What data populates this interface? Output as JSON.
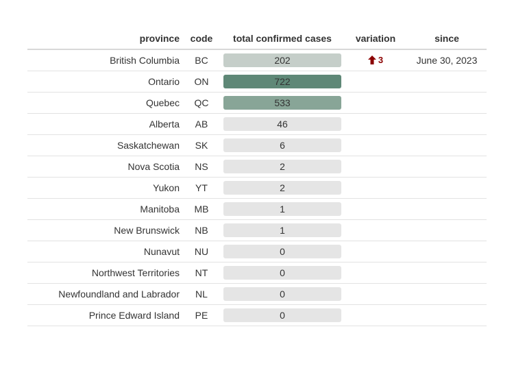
{
  "headers": {
    "province": "province",
    "code": "code",
    "cases": "total confirmed cases",
    "variation": "variation",
    "since": "since"
  },
  "colors": {
    "variation_up": "#8b0000"
  },
  "rows": [
    {
      "province": "British Columbia",
      "code": "BC",
      "cases": "202",
      "bar_color": "#c5cec9",
      "variation": "3",
      "variation_direction": "up",
      "since": "June 30, 2023"
    },
    {
      "province": "Ontario",
      "code": "ON",
      "cases": "722",
      "bar_color": "#5f8877",
      "variation": "",
      "since": ""
    },
    {
      "province": "Quebec",
      "code": "QC",
      "cases": "533",
      "bar_color": "#88a597",
      "variation": "",
      "since": ""
    },
    {
      "province": "Alberta",
      "code": "AB",
      "cases": "46",
      "bar_color": "#e5e5e5",
      "variation": "",
      "since": ""
    },
    {
      "province": "Saskatchewan",
      "code": "SK",
      "cases": "6",
      "bar_color": "#e5e5e5",
      "variation": "",
      "since": ""
    },
    {
      "province": "Nova Scotia",
      "code": "NS",
      "cases": "2",
      "bar_color": "#e5e5e5",
      "variation": "",
      "since": ""
    },
    {
      "province": "Yukon",
      "code": "YT",
      "cases": "2",
      "bar_color": "#e5e5e5",
      "variation": "",
      "since": ""
    },
    {
      "province": "Manitoba",
      "code": "MB",
      "cases": "1",
      "bar_color": "#e5e5e5",
      "variation": "",
      "since": ""
    },
    {
      "province": "New Brunswick",
      "code": "NB",
      "cases": "1",
      "bar_color": "#e5e5e5",
      "variation": "",
      "since": ""
    },
    {
      "province": "Nunavut",
      "code": "NU",
      "cases": "0",
      "bar_color": "#e5e5e5",
      "variation": "",
      "since": ""
    },
    {
      "province": "Northwest Territories",
      "code": "NT",
      "cases": "0",
      "bar_color": "#e5e5e5",
      "variation": "",
      "since": ""
    },
    {
      "province": "Newfoundland and Labrador",
      "code": "NL",
      "cases": "0",
      "bar_color": "#e5e5e5",
      "variation": "",
      "since": ""
    },
    {
      "province": "Prince Edward Island",
      "code": "PE",
      "cases": "0",
      "bar_color": "#e5e5e5",
      "variation": "",
      "since": ""
    }
  ]
}
